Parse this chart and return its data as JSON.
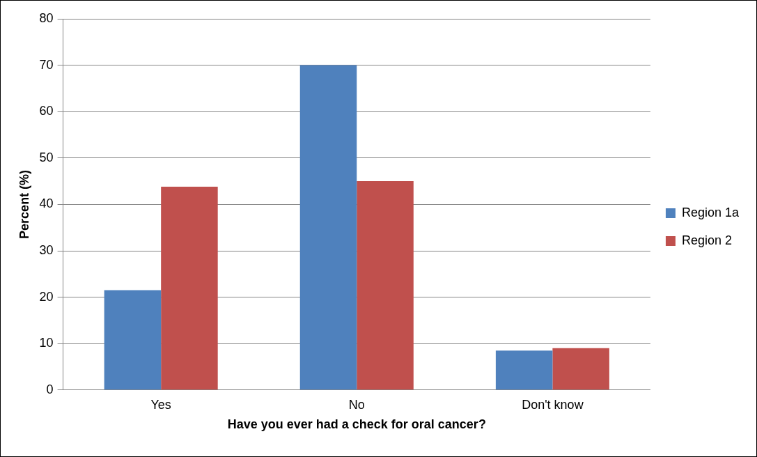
{
  "chart_data": {
    "type": "bar",
    "xlabel": "Have you ever had a check for oral cancer?",
    "ylabel": "Percent (%)",
    "categories": [
      "Yes",
      "No",
      "Don't know"
    ],
    "series": [
      {
        "name": "Region 1a",
        "color": "#4f81bd",
        "values": [
          21.5,
          70,
          8.5
        ]
      },
      {
        "name": "Region 2",
        "color": "#c0504d",
        "values": [
          43.8,
          45,
          9
        ]
      }
    ],
    "ylim": [
      0,
      80
    ],
    "yticks": [
      0,
      10,
      20,
      30,
      40,
      50,
      60,
      70,
      80
    ],
    "grid": "y",
    "legend": "right"
  }
}
